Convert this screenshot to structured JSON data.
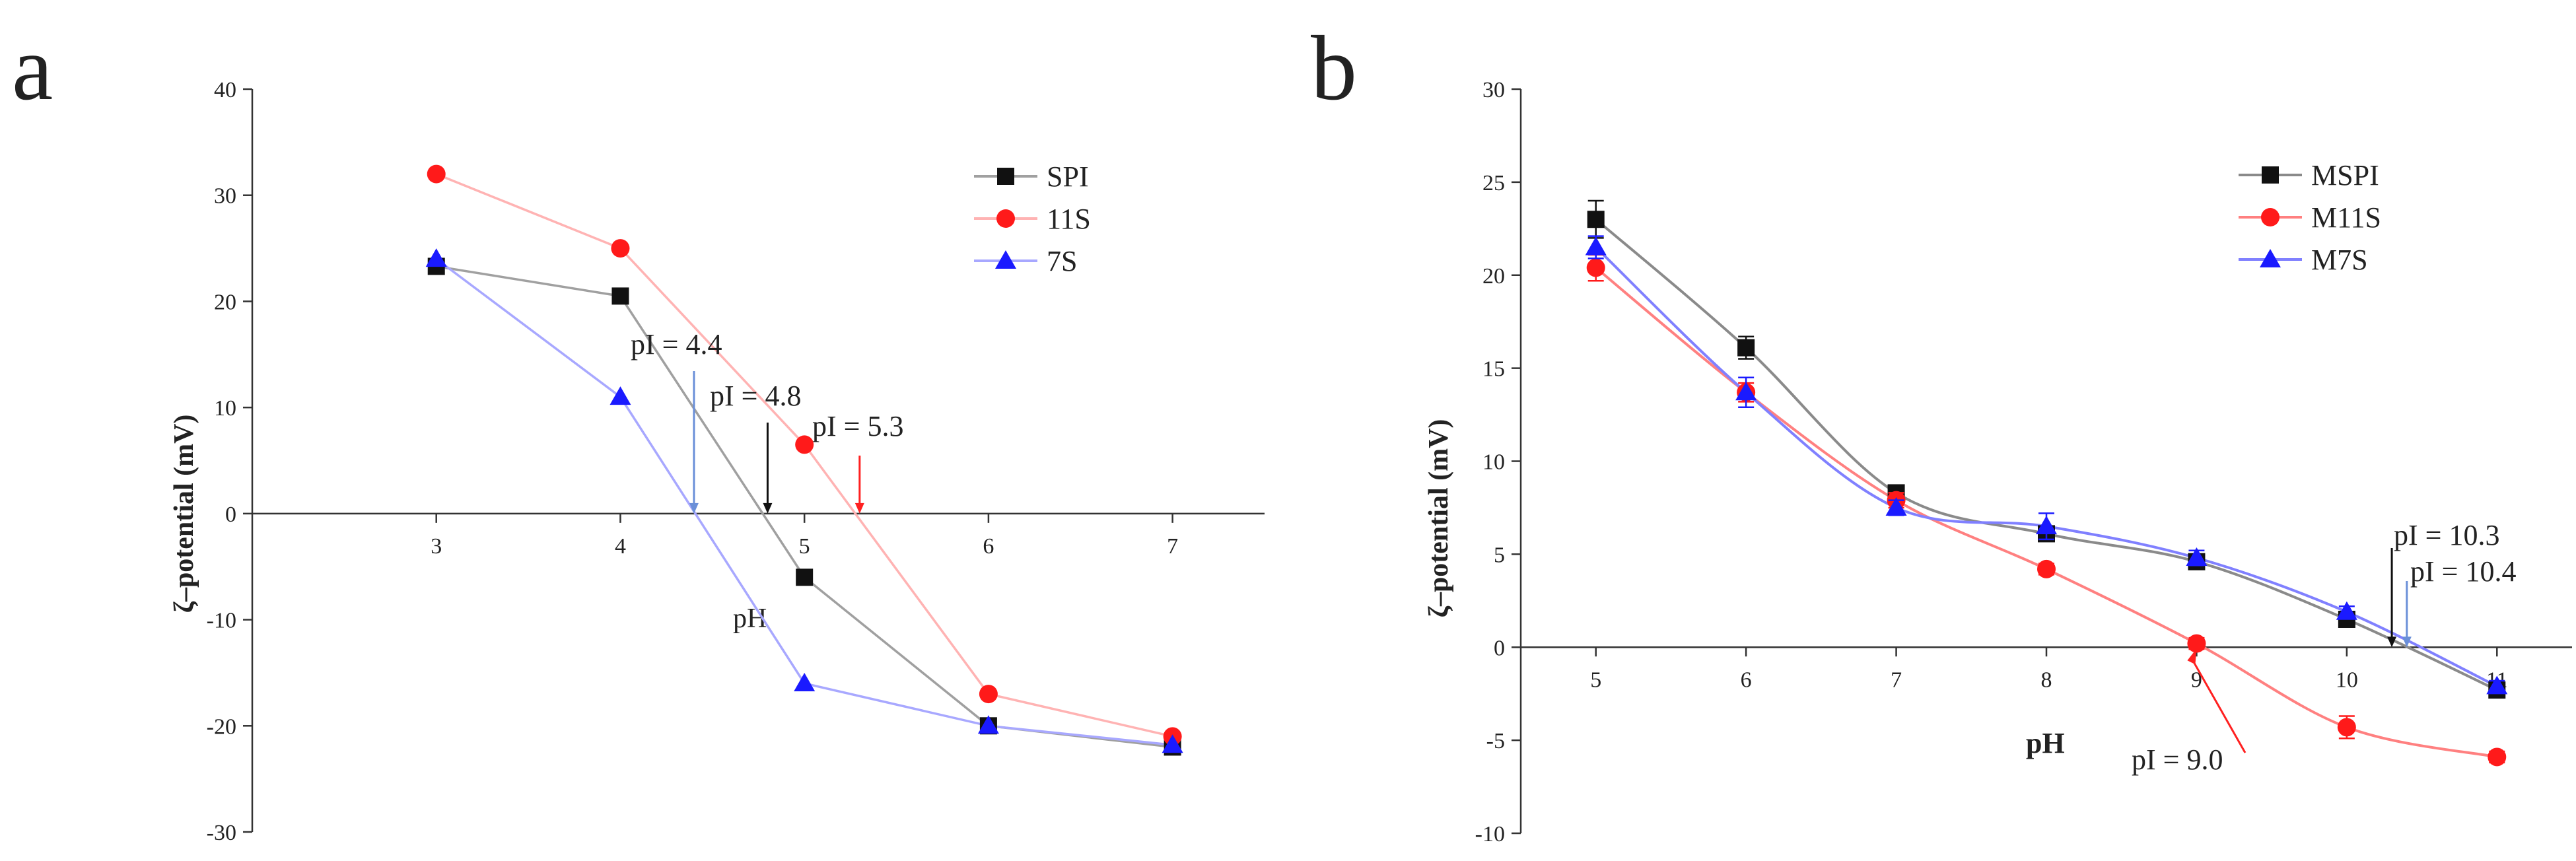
{
  "figure": {
    "background": "#ffffff"
  },
  "chart_data": [
    {
      "panel_label": "a",
      "type": "line",
      "x": [
        3,
        4,
        5,
        6,
        7
      ],
      "xticks": [
        "3",
        "4",
        "5",
        "6",
        "7"
      ],
      "yticks": [
        "40",
        "30",
        "20",
        "10",
        "0",
        "-10",
        "-20",
        "-30"
      ],
      "ylim": [
        -30,
        40
      ],
      "xlim": [
        2.0,
        7.5
      ],
      "xlabel": "pH",
      "ylabel": "ζ–potential (mV)",
      "legend_position": "top-right",
      "series": [
        {
          "name": "SPI",
          "marker": "square",
          "color": "#111111",
          "line_color": "#a0a0a0",
          "values": [
            23.3,
            20.5,
            -6.0,
            -20.0,
            -22.0
          ]
        },
        {
          "name": "11S",
          "marker": "circle",
          "color": "#ff1a1a",
          "line_color": "#ffb3b3",
          "values": [
            32.0,
            25.0,
            6.5,
            -17.0,
            -21.0
          ]
        },
        {
          "name": "7S",
          "marker": "triangle",
          "color": "#1a1aff",
          "line_color": "#a8a8ff",
          "values": [
            24.0,
            11.0,
            -16.0,
            -20.0,
            -21.8
          ]
        }
      ],
      "annotations": [
        {
          "text": "pI = 4.4",
          "x": 4.4,
          "color": "#6a8fd8"
        },
        {
          "text": "pI = 4.8",
          "x": 4.8,
          "color": "#111111"
        },
        {
          "text": "pI = 5.3",
          "x": 5.3,
          "color": "#ff2020"
        }
      ]
    },
    {
      "panel_label": "b",
      "type": "line",
      "x": [
        5,
        6,
        7,
        8,
        9,
        10,
        11
      ],
      "xticks": [
        "5",
        "6",
        "7",
        "8",
        "9",
        "10",
        "11"
      ],
      "yticks": [
        "30",
        "25",
        "20",
        "15",
        "10",
        "5",
        "0",
        "-5",
        "-10"
      ],
      "ylim": [
        -10,
        30
      ],
      "xlim": [
        4.5,
        11.5
      ],
      "xlabel": "pH",
      "ylabel": "ζ–potential (mV)",
      "legend_position": "top-right",
      "series": [
        {
          "name": "MSPI",
          "marker": "square",
          "color": "#111111",
          "line_color": "#8a8a8a",
          "values": [
            23.0,
            16.1,
            8.3,
            6.1,
            4.6,
            1.5,
            -2.3
          ],
          "errors": [
            1.0,
            0.6,
            0.3,
            0.3,
            0.3,
            0.3,
            0.3
          ]
        },
        {
          "name": "M11S",
          "marker": "circle",
          "color": "#ff1a1a",
          "line_color": "#ff8080",
          "values": [
            20.4,
            13.7,
            7.9,
            4.2,
            0.2,
            -4.3,
            -5.9
          ],
          "errors": [
            0.7,
            0.5,
            0.4,
            0.3,
            0.3,
            0.6,
            0.3
          ]
        },
        {
          "name": "M7S",
          "marker": "triangle",
          "color": "#1a1aff",
          "line_color": "#8080ff",
          "values": [
            21.5,
            13.7,
            7.5,
            6.5,
            4.8,
            1.9,
            -2.1
          ],
          "errors": [
            0.6,
            0.8,
            0.4,
            0.7,
            0.4,
            0.3,
            0.3
          ]
        }
      ],
      "annotations": [
        {
          "text": "pI = 10.3",
          "x": 10.3,
          "color": "#111111"
        },
        {
          "text": "pI = 10.4",
          "x": 10.4,
          "color": "#6a8fd8"
        },
        {
          "text": "pI = 9.0",
          "x": 9.0,
          "color": "#ff2020"
        }
      ]
    }
  ]
}
